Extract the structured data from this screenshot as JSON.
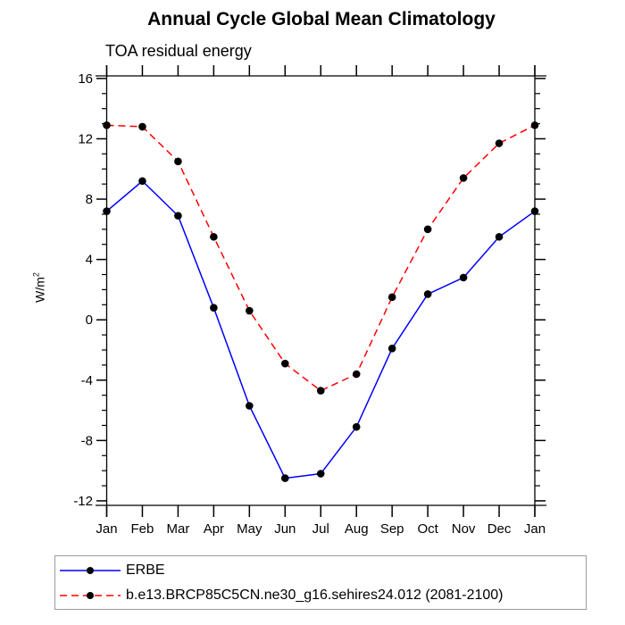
{
  "chart_data": {
    "type": "line",
    "title": "Annual Cycle Global Mean Climatology",
    "subtitle": "TOA residual energy",
    "ylabel": "W/m²",
    "ylabel_parts": {
      "base": "W/m",
      "exp": "2"
    },
    "categories": [
      "Jan",
      "Feb",
      "Mar",
      "Apr",
      "May",
      "Jun",
      "Jul",
      "Aug",
      "Sep",
      "Oct",
      "Nov",
      "Dec",
      "Jan"
    ],
    "y_ticks": [
      -12,
      -8,
      -4,
      0,
      4,
      8,
      12,
      16
    ],
    "y_minor_step": 1,
    "ylim": [
      -12.3,
      16.17
    ],
    "grid": false,
    "legend_position": "bottom",
    "marker": {
      "shape": "circle",
      "color": "#000000",
      "radius": 4.3
    },
    "axis_color": "#000000",
    "series": [
      {
        "name": "ERBE",
        "color": "#0000ff",
        "style": "solid",
        "values": [
          7.2,
          9.2,
          6.9,
          0.8,
          -5.7,
          -10.5,
          -10.2,
          -7.1,
          -1.9,
          1.7,
          2.8,
          5.5,
          7.2
        ]
      },
      {
        "name": "b.e13.BRCP85C5CN.ne30_g16.sehires24.012 (2081-2100)",
        "color": "#ff0000",
        "style": "dashed",
        "values": [
          12.9,
          12.8,
          10.5,
          5.5,
          0.6,
          -2.9,
          -4.7,
          -3.6,
          1.5,
          6.0,
          9.4,
          11.7,
          12.9
        ]
      }
    ]
  }
}
